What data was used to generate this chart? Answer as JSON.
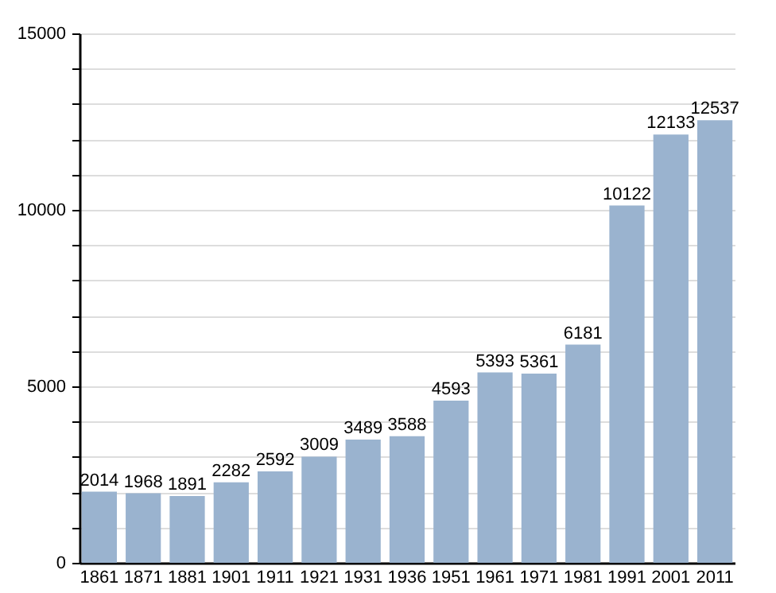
{
  "chart_data": {
    "type": "bar",
    "categories": [
      "1861",
      "1871",
      "1881",
      "1901",
      "1911",
      "1921",
      "1931",
      "1936",
      "1951",
      "1961",
      "1971",
      "1981",
      "1991",
      "2001",
      "2011"
    ],
    "values": [
      2014,
      1968,
      1891,
      2282,
      2592,
      3009,
      3489,
      3588,
      4593,
      5393,
      5361,
      6181,
      10122,
      12133,
      12537
    ],
    "color": "#9ab3cf",
    "data_labels": true,
    "grid": "y",
    "ylim": [
      0,
      15000
    ],
    "yticks": [
      0,
      {
        "value": 1000,
        "label": null
      },
      {
        "value": 2000,
        "label": null
      },
      {
        "value": 3000,
        "label": null
      },
      {
        "value": 4000,
        "label": null
      },
      5000,
      {
        "value": 6000,
        "label": null
      },
      {
        "value": 7000,
        "label": null
      },
      {
        "value": 8000,
        "label": null
      },
      {
        "value": 9000,
        "label": null
      },
      10000,
      {
        "value": 11000,
        "label": null
      },
      {
        "value": 12000,
        "label": null
      },
      {
        "value": 13000,
        "label": null
      },
      {
        "value": 14000,
        "label": null
      },
      15000
    ]
  }
}
